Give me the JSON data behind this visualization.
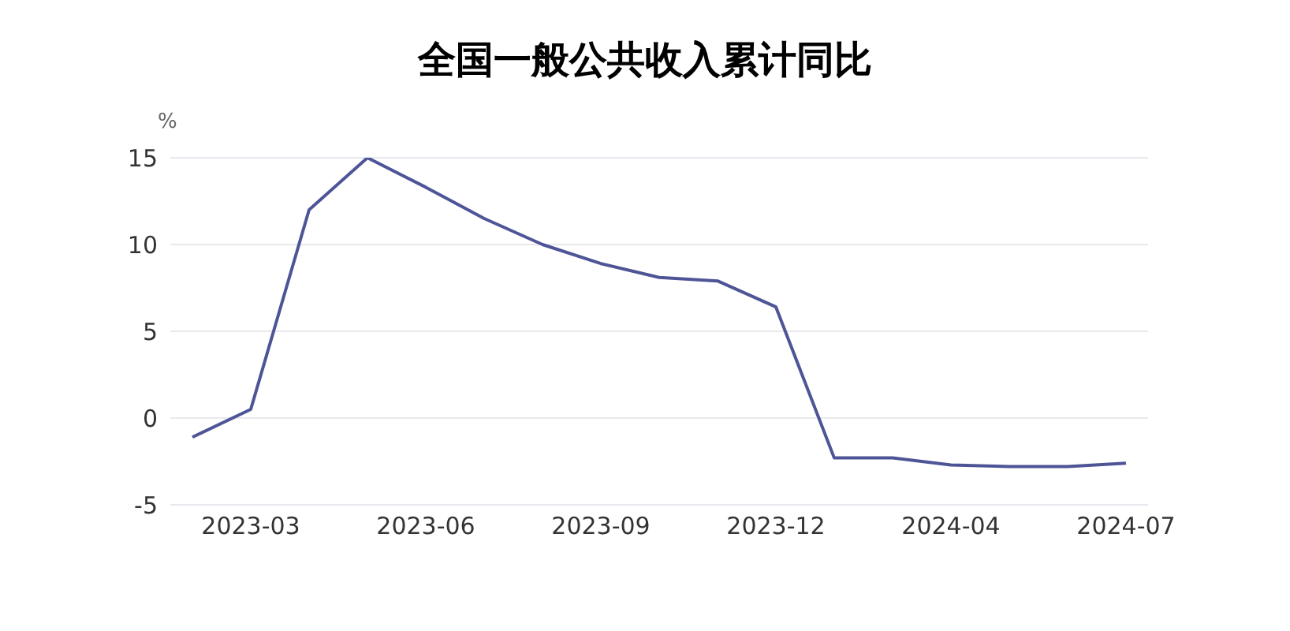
{
  "chart_data": {
    "type": "line",
    "title": "全国一般公共收入累计同比",
    "ylabel": "%",
    "categories": [
      null,
      "2023-03",
      null,
      null,
      "2023-06",
      null,
      null,
      "2023-09",
      null,
      null,
      "2023-12",
      null,
      null,
      "2024-04",
      null,
      null,
      "2024-07"
    ],
    "series": [
      {
        "color": "#4e5597",
        "values": [
          -1.1,
          0.5,
          12.0,
          15.0,
          13.3,
          11.5,
          10.0,
          8.9,
          8.1,
          7.9,
          6.4,
          -2.3,
          -2.3,
          -2.7,
          -2.8,
          -2.8,
          -2.6
        ]
      }
    ],
    "ylim": [
      -5,
      15
    ],
    "yticks": [
      -5,
      0,
      5,
      10,
      15
    ],
    "grid": "y",
    "legend": false,
    "marker": "none",
    "line_style": "solid"
  }
}
